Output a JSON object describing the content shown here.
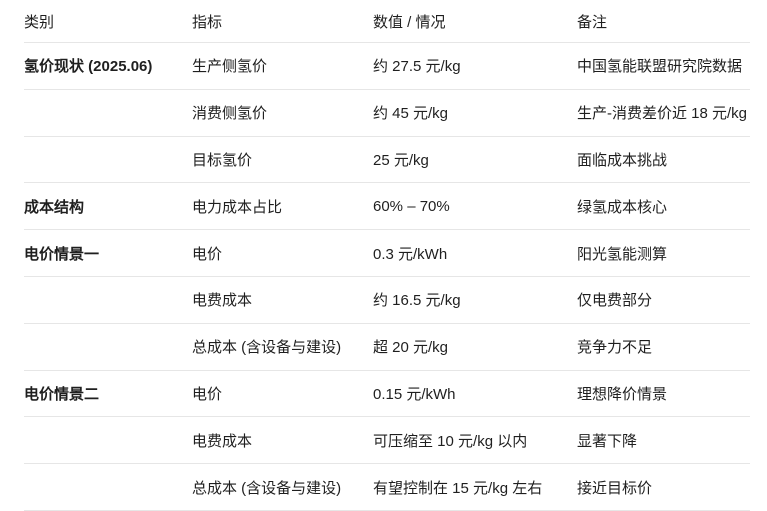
{
  "table": {
    "headers": {
      "category": "类别",
      "indicator": "指标",
      "value": "数值 / 情况",
      "note": "备注"
    },
    "rows": [
      {
        "category": "氢价现状 (2025.06)",
        "indicator": "生产侧氢价",
        "value": "约 27.5 元/kg",
        "note": "中国氢能联盟研究院数据"
      },
      {
        "category": "",
        "indicator": "消费侧氢价",
        "value": "约 45 元/kg",
        "note": "生产-消费差价近 18 元/kg"
      },
      {
        "category": "",
        "indicator": "目标氢价",
        "value": "25 元/kg",
        "note": "面临成本挑战"
      },
      {
        "category": "成本结构",
        "indicator": "电力成本占比",
        "value": "60% – 70%",
        "note": "绿氢成本核心"
      },
      {
        "category": "电价情景一",
        "indicator": "电价",
        "value": "0.3 元/kWh",
        "note": "阳光氢能测算"
      },
      {
        "category": "",
        "indicator": "电费成本",
        "value": "约 16.5 元/kg",
        "note": "仅电费部分"
      },
      {
        "category": "",
        "indicator": "总成本 (含设备与建设)",
        "value": "超 20 元/kg",
        "note": "竞争力不足"
      },
      {
        "category": "电价情景二",
        "indicator": "电价",
        "value": "0.15 元/kWh",
        "note": "理想降价情景"
      },
      {
        "category": "",
        "indicator": "电费成本",
        "value": "可压缩至 10 元/kg 以内",
        "note": "显著下降"
      },
      {
        "category": "",
        "indicator": "总成本 (含设备与建设)",
        "value": "有望控制在 15 元/kg 左右",
        "note": "接近目标价"
      }
    ],
    "colors": {
      "text": "#1f1f1f",
      "border": "#e6e6e6",
      "background": "#ffffff"
    }
  }
}
